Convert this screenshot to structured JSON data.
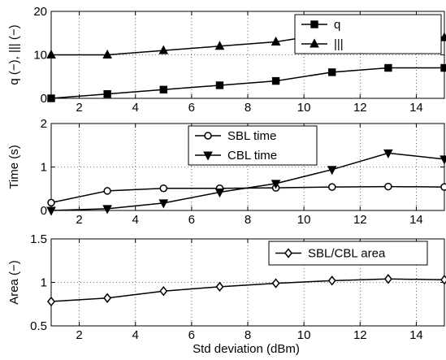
{
  "chart_data": [
    {
      "type": "line",
      "xlabel": "",
      "ylabel": "q (−), ||| (−)",
      "xlim": [
        1,
        15
      ],
      "ylim": [
        0,
        20
      ],
      "xticks": [
        2,
        4,
        6,
        8,
        10,
        12,
        14
      ],
      "yticks": [
        0,
        10,
        20
      ],
      "grid": "dotted",
      "legend_position": "top-right",
      "series": [
        {
          "name": "q",
          "marker": "square",
          "x": [
            1,
            3,
            5,
            7,
            9,
            11,
            13,
            15
          ],
          "values": [
            0,
            1,
            2,
            3,
            4,
            6,
            7,
            7
          ]
        },
        {
          "name": "|||",
          "marker": "triangle-up",
          "x": [
            1,
            3,
            5,
            7,
            9,
            11,
            13,
            15
          ],
          "values": [
            10,
            10,
            11,
            12,
            13,
            15,
            16,
            14
          ]
        }
      ]
    },
    {
      "type": "line",
      "xlabel": "",
      "ylabel": "Time (s)",
      "xlim": [
        1,
        15
      ],
      "ylim": [
        0,
        2
      ],
      "xticks": [
        2,
        4,
        6,
        8,
        10,
        12,
        14
      ],
      "yticks": [
        0,
        1,
        2
      ],
      "grid": "dotted",
      "legend_position": "top-center",
      "series": [
        {
          "name": "SBL time",
          "marker": "circle",
          "x": [
            1,
            3,
            5,
            7,
            9,
            11,
            13,
            15
          ],
          "values": [
            0.18,
            0.45,
            0.51,
            0.51,
            0.52,
            0.54,
            0.55,
            0.54
          ]
        },
        {
          "name": "CBL time",
          "marker": "triangle-down",
          "x": [
            1,
            3,
            5,
            7,
            9,
            11,
            13,
            15
          ],
          "values": [
            0.0,
            0.04,
            0.17,
            0.42,
            0.62,
            0.94,
            1.32,
            1.18
          ]
        }
      ]
    },
    {
      "type": "line",
      "xlabel": "Std deviation (dBm)",
      "ylabel": "Area (−)",
      "xlim": [
        1,
        15
      ],
      "ylim": [
        0.5,
        1.5
      ],
      "xticks": [
        2,
        4,
        6,
        8,
        10,
        12,
        14
      ],
      "yticks": [
        0.5,
        1,
        1.5
      ],
      "grid": "dotted",
      "legend_position": "top-right",
      "series": [
        {
          "name": "SBL/CBL area",
          "marker": "diamond",
          "x": [
            1,
            3,
            5,
            7,
            9,
            11,
            13,
            15
          ],
          "values": [
            0.78,
            0.82,
            0.9,
            0.95,
            0.99,
            1.02,
            1.04,
            1.03
          ]
        }
      ]
    }
  ],
  "colors": {
    "line": "#000000",
    "grid": "#000000",
    "background": "#ffffff"
  }
}
